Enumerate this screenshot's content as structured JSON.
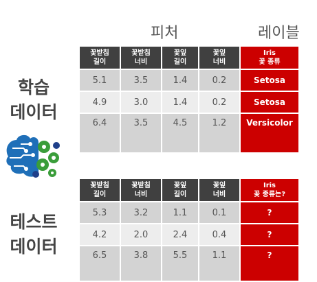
{
  "headers": {
    "features": "피처",
    "label": "레이블"
  },
  "columns": [
    "꽃받침\n길이",
    "꽃받침\n너비",
    "꽃잎\n길이",
    "꽃잎\n너비"
  ],
  "training": {
    "side_label": "학습\n데이터",
    "label_header": "Iris\n꽃 종류",
    "rows": [
      {
        "values": [
          "5.1",
          "3.5",
          "1.4",
          "0.2"
        ],
        "label": "Setosa"
      },
      {
        "values": [
          "4.9",
          "3.0",
          "1.4",
          "0.2"
        ],
        "label": "Setosa"
      },
      {
        "values": [
          "6.4",
          "3.5",
          "4.5",
          "1.2"
        ],
        "label": "Versicolor"
      }
    ]
  },
  "test": {
    "side_label": "테스트\n데이터",
    "label_header": "Iris\n꽃 종류는?",
    "rows": [
      {
        "values": [
          "5.3",
          "3.2",
          "1.1",
          "0.1"
        ],
        "label": "?"
      },
      {
        "values": [
          "4.2",
          "2.0",
          "2.4",
          "0.4"
        ],
        "label": "?"
      },
      {
        "values": [
          "6.5",
          "3.8",
          "5.5",
          "1.1"
        ],
        "label": "?"
      }
    ]
  },
  "icon": "brain-gears-icon",
  "colors": {
    "header": "#404040",
    "label": "#cc0000",
    "row_dark": "#d3d3d3",
    "row_light": "#ededed"
  }
}
